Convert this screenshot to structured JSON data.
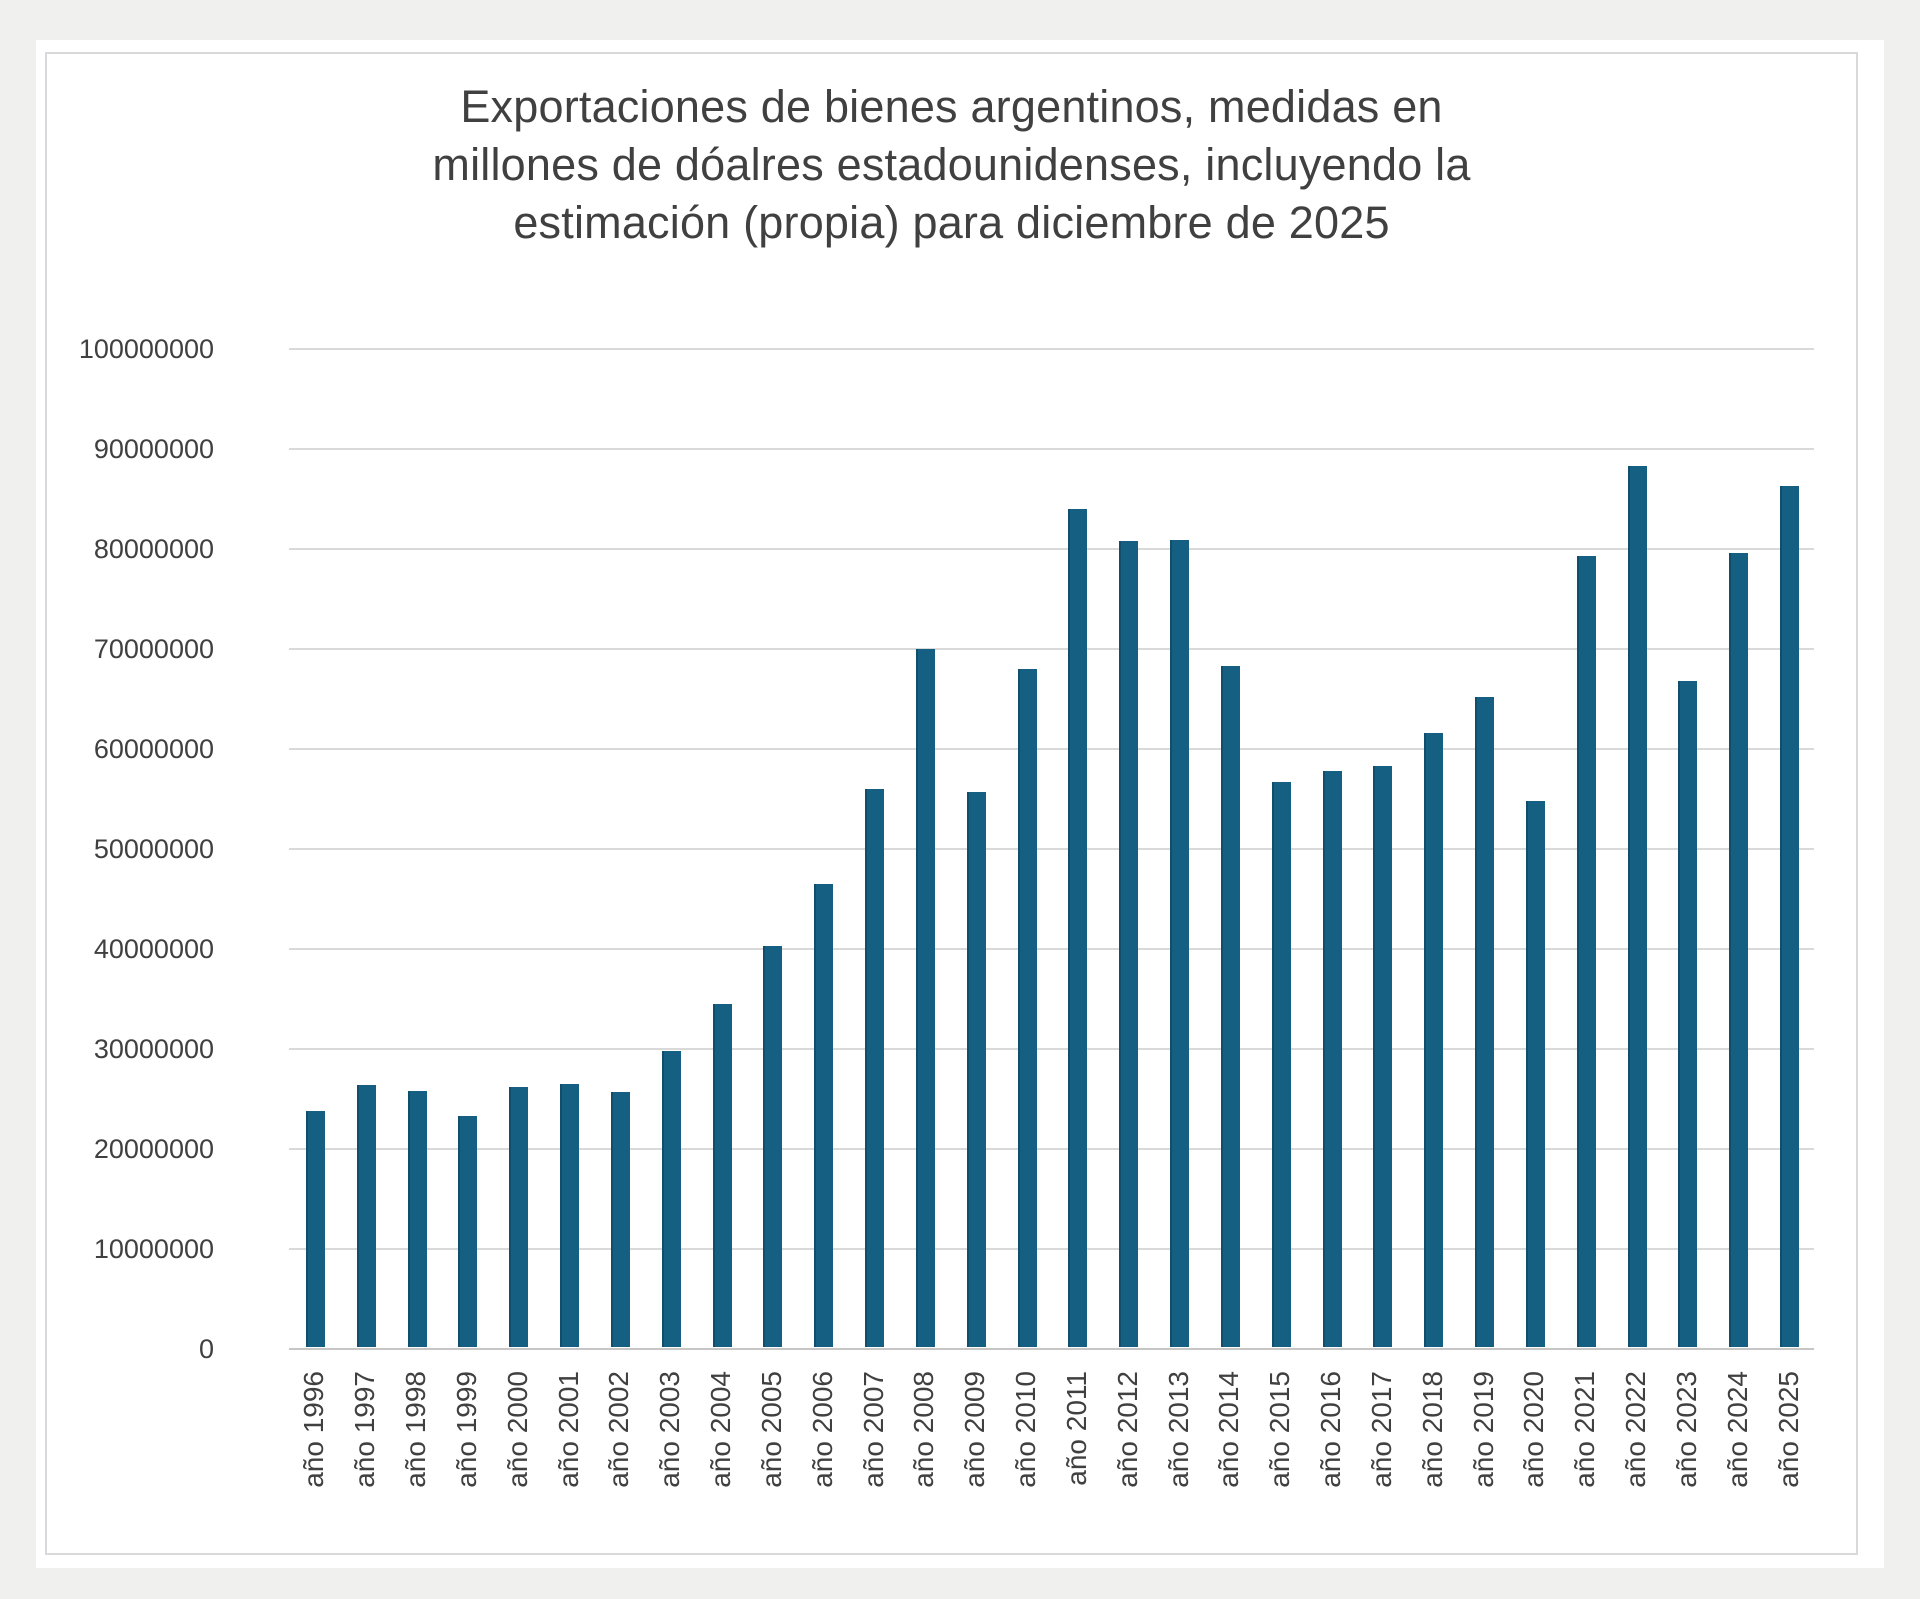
{
  "page": {
    "background_color": "#f0f0ef",
    "card_color": "#ffffff",
    "frame_border_color": "#d9d9d9"
  },
  "chart_data": {
    "type": "bar",
    "title": "Exportaciones de bienes argentinos, medidas en millones de dóalres estadounidenses, incluyendo la estimación (propia) para diciembre de 2025",
    "title_lines": [
      "Exportaciones de bienes argentinos, medidas en",
      "millones de dóalres estadounidenses, incluyendo la",
      "estimación (propia) para diciembre de 2025"
    ],
    "categories": [
      "año 1996",
      "año 1997",
      "año 1998",
      "año 1999",
      "año 2000",
      "año 2001",
      "año 2002",
      "año 2003",
      "año 2004",
      "año 2005",
      "año 2006",
      "año 2007",
      "año 2008",
      "año 2009",
      "año 2010",
      "año 2011",
      "año 2012",
      "año 2013",
      "año 2014",
      "año 2015",
      "año 2016",
      "año 2017",
      "año 2018",
      "año 2019",
      "año 2020",
      "año 2021",
      "año 2022",
      "año 2023",
      "año 2024",
      "año 2025"
    ],
    "values": [
      23800000,
      26400000,
      25800000,
      23300000,
      26200000,
      26500000,
      25700000,
      29800000,
      34500000,
      40300000,
      46500000,
      56000000,
      70000000,
      55700000,
      68000000,
      84000000,
      80800000,
      80900000,
      68300000,
      56700000,
      57800000,
      58300000,
      61600000,
      65200000,
      54800000,
      79300000,
      88300000,
      66800000,
      79600000,
      86300000
    ],
    "xlabel": "",
    "ylabel": "",
    "ylim": [
      0,
      100000000
    ],
    "y_ticks": [
      0,
      10000000,
      20000000,
      30000000,
      40000000,
      50000000,
      60000000,
      70000000,
      80000000,
      90000000,
      100000000
    ],
    "grid": true,
    "legend": false,
    "bar_color": "#156082",
    "text_color": "#404040",
    "gridline_color": "#d9d9d9",
    "axis_line_color": "#c6c6c6"
  }
}
